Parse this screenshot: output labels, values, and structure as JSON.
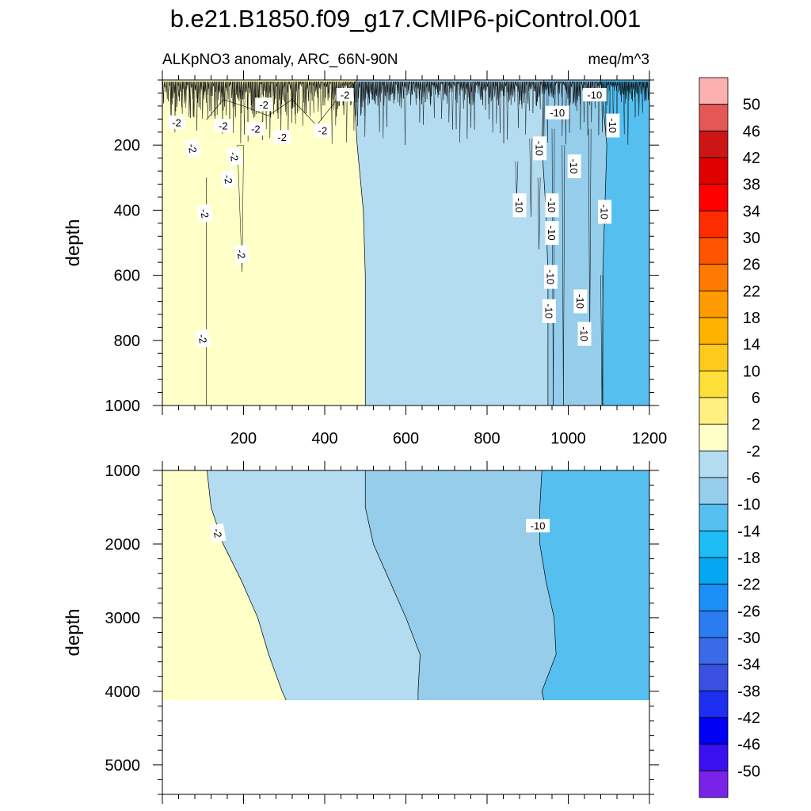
{
  "chart_data": {
    "type": "contour",
    "title": "b.e21.B1850.f09_g17.CMIP6-piControl.001",
    "left_subtitle": "ALKpNO3 anomaly, ARC_66N-90N",
    "right_subtitle": "meq/m^3",
    "xlim": [
      0,
      1200
    ],
    "x_ticks": [
      "200",
      "400",
      "600",
      "800",
      "1000",
      "1200"
    ],
    "panels": [
      {
        "name": "upper",
        "ylabel": "depth",
        "ylim": [
          0,
          1000
        ],
        "y_ticks": [
          "200",
          "400",
          "600",
          "800",
          "1000"
        ],
        "surface_noise_to_depth": 200,
        "regions": [
          {
            "level": "2 to -2 (yellow)",
            "boundary": [
              [
                0,
                1000
              ],
              [
                0,
                0
              ],
              [
                20,
                0
              ],
              [
                30,
                90
              ],
              [
                60,
                150
              ],
              [
                110,
                120
              ],
              [
                150,
                60
              ],
              [
                200,
                80
              ],
              [
                260,
                110
              ],
              [
                320,
                60
              ],
              [
                380,
                140
              ],
              [
                430,
                60
              ],
              [
                480,
                0
              ],
              [
                0,
                0
              ]
            ]
          },
          {
            "level": "-2 to -6",
            "boundary_x_at_depth": [
              [
                0,
                470
              ],
              [
                200,
                480
              ],
              [
                400,
                495
              ],
              [
                600,
                500
              ],
              [
                800,
                500
              ],
              [
                1000,
                500
              ]
            ]
          },
          {
            "level": "-6 to -10",
            "boundary_x_at_depth": [
              [
                0,
                940
              ],
              [
                200,
                935
              ],
              [
                400,
                945
              ],
              [
                600,
                950
              ],
              [
                800,
                950
              ],
              [
                1000,
                950
              ]
            ]
          },
          {
            "level": "-10 to -14",
            "boundary_x_at_depth": [
              [
                0,
                1080
              ],
              [
                200,
                1095
              ],
              [
                400,
                1090
              ],
              [
                600,
                1085
              ],
              [
                800,
                1085
              ],
              [
                1000,
                1085
              ]
            ]
          }
        ],
        "contour_labels": [
          {
            "text": "-2",
            "x": 35,
            "y": 130
          },
          {
            "text": "-2",
            "x": 75,
            "y": 210
          },
          {
            "text": "-2",
            "x": 150,
            "y": 140
          },
          {
            "text": "-2",
            "x": 250,
            "y": 75
          },
          {
            "text": "-2",
            "x": 230,
            "y": 150
          },
          {
            "text": "-2",
            "x": 295,
            "y": 175
          },
          {
            "text": "-2",
            "x": 395,
            "y": 155
          },
          {
            "text": "-2",
            "x": 450,
            "y": 45
          },
          {
            "text": "-2",
            "x": 178,
            "y": 235
          },
          {
            "text": "-2",
            "x": 163,
            "y": 305
          },
          {
            "text": "-2",
            "x": 105,
            "y": 410
          },
          {
            "text": "-2",
            "x": 195,
            "y": 535
          },
          {
            "text": "-2",
            "x": 100,
            "y": 795
          },
          {
            "text": "-10",
            "x": 1065,
            "y": 45
          },
          {
            "text": "-10",
            "x": 973,
            "y": 100
          },
          {
            "text": "-10",
            "x": 1110,
            "y": 140
          },
          {
            "text": "-10",
            "x": 930,
            "y": 210
          },
          {
            "text": "-10",
            "x": 1015,
            "y": 265
          },
          {
            "text": "-10",
            "x": 880,
            "y": 385
          },
          {
            "text": "-10",
            "x": 960,
            "y": 385
          },
          {
            "text": "-10",
            "x": 1090,
            "y": 405
          },
          {
            "text": "-10",
            "x": 960,
            "y": 470
          },
          {
            "text": "-10",
            "x": 957,
            "y": 605
          },
          {
            "text": "-10",
            "x": 1030,
            "y": 680
          },
          {
            "text": "-10",
            "x": 953,
            "y": 710
          },
          {
            "text": "-10",
            "x": 1040,
            "y": 780
          }
        ]
      },
      {
        "name": "lower",
        "ylabel": "depth",
        "ylim": [
          1000,
          5400
        ],
        "y_ticks": [
          "1000",
          "2000",
          "3000",
          "4000",
          "5000"
        ],
        "bottom_of_data": 4120,
        "regions": [
          {
            "level": "2 to -2 (yellow)",
            "boundary_x_at_depth": [
              [
                1000,
                110
              ],
              [
                1500,
                120
              ],
              [
                2000,
                150
              ],
              [
                2500,
                195
              ],
              [
                3000,
                235
              ],
              [
                3500,
                262
              ],
              [
                4000,
                295
              ],
              [
                4120,
                305
              ]
            ]
          },
          {
            "level": "-2 to -6",
            "boundary_x_at_depth": [
              [
                1000,
                500
              ],
              [
                1500,
                500
              ],
              [
                2000,
                520
              ],
              [
                2500,
                560
              ],
              [
                3000,
                600
              ],
              [
                3500,
                635
              ],
              [
                4000,
                630
              ],
              [
                4120,
                630
              ]
            ]
          },
          {
            "level": "-6 to -10",
            "boundary_x_at_depth": [
              [
                1000,
                935
              ],
              [
                1500,
                930
              ],
              [
                2000,
                930
              ],
              [
                2500,
                945
              ],
              [
                3000,
                965
              ],
              [
                3500,
                970
              ],
              [
                4000,
                935
              ],
              [
                4120,
                940
              ]
            ]
          }
        ],
        "contour_labels": [
          {
            "text": "-2",
            "x": 137,
            "y": 1850
          },
          {
            "text": "-10",
            "x": 925,
            "y": 1750
          }
        ]
      }
    ],
    "colorbar": {
      "labels": [
        "50",
        "46",
        "42",
        "38",
        "34",
        "30",
        "26",
        "22",
        "18",
        "14",
        "10",
        "6",
        "2",
        "-2",
        "-6",
        "-10",
        "-14",
        "-18",
        "-22",
        "-26",
        "-30",
        "-34",
        "-38",
        "-42",
        "-46",
        "-50"
      ],
      "colors": [
        "#fdb0b0",
        "#e45757",
        "#cc1515",
        "#e00000",
        "#ff0000",
        "#ff2c00",
        "#ff5500",
        "#ff7a00",
        "#ff9a00",
        "#ffb300",
        "#ffca1c",
        "#ffdf3a",
        "#fff080",
        "#ffffc8",
        "#b3dcf0",
        "#95cdeb",
        "#55c0f0",
        "#1cbcf5",
        "#05a8f0",
        "#1a8ff5",
        "#2a7cf0",
        "#3a6ae8",
        "#3a50e0",
        "#1c2ef0",
        "#0000f5",
        "#3a10f0",
        "#7a22e8"
      ]
    }
  }
}
